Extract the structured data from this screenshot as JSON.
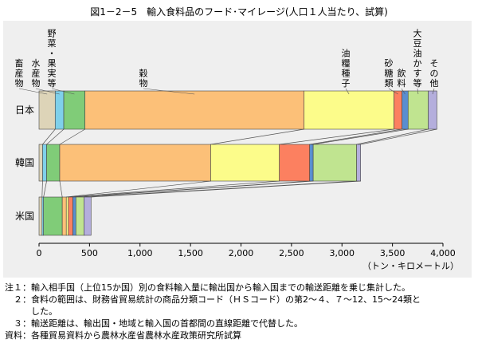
{
  "title": "図1－2－5　輸入食料品のフード･マイレージ(人口１人当たり、試算)",
  "chart_data": {
    "type": "bar",
    "orientation": "horizontal",
    "stacked": true,
    "categories": [
      "日本",
      "韓国",
      "米国"
    ],
    "series": [
      {
        "name": "畜産物",
        "color": "#ddd4b8",
        "values": [
          160,
          35,
          30
        ]
      },
      {
        "name": "水産物",
        "color": "#7fd0ea",
        "values": [
          85,
          40,
          15
        ]
      },
      {
        "name": "野菜・果実等",
        "color": "#80cc78",
        "values": [
          210,
          130,
          185
        ]
      },
      {
        "name": "穀物",
        "color": "#fcc078",
        "values": [
          2170,
          1495,
          40
        ]
      },
      {
        "name": "油糧種子",
        "color": "#fcfc8a",
        "values": [
          890,
          680,
          20
        ]
      },
      {
        "name": "砂糖類",
        "color": "#fc8060",
        "values": [
          80,
          300,
          45
        ]
      },
      {
        "name": "飲料",
        "color": "#5a8ed0",
        "values": [
          60,
          35,
          30
        ]
      },
      {
        "name": "大豆油かす等",
        "color": "#c0e490",
        "values": [
          200,
          430,
          80
        ]
      },
      {
        "name": "その他",
        "color": "#b4aedc",
        "values": [
          85,
          40,
          70
        ]
      }
    ],
    "xlim": [
      0,
      4000
    ],
    "xticks": [
      0,
      500,
      1000,
      1500,
      2000,
      2500,
      3000,
      3500,
      4000
    ],
    "xtick_labels": [
      "0",
      "500",
      "1,000",
      "1,500",
      "2,000",
      "2,500",
      "3,000",
      "3,500",
      "4,000"
    ],
    "xlabel": "（トン・キロメートル）",
    "grid": false,
    "legend": "vertical labels above top bar with leader lines"
  },
  "notes": [
    "注１：輸入相手国（上位15か国）別の食料輸入量に輸出国から輸入国までの輸送距離を乗じ集計した。",
    "　２：食料の範囲は、財務省貿易統計の商品分類コード（ＨＳコード）の第2～４、７～12、15～24類と",
    "　　　した。",
    "　３：輸送距離は、輸出国・地域と輸入国の首都間の直線距離で代替した。",
    "資料：各種貿易資料から農林水産省農林水産政策研究所試算"
  ]
}
